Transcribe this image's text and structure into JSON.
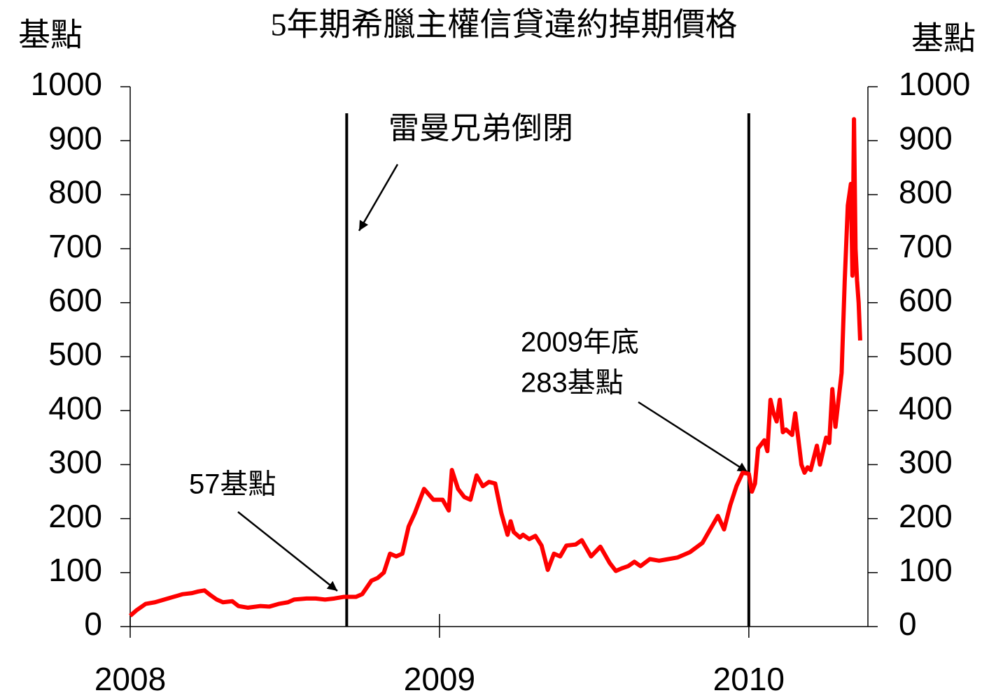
{
  "chart_data": {
    "type": "line",
    "title": "5年期希臘主權信貸違約掉期價格",
    "y_axis_label": "基點",
    "y2_axis_label": "基點",
    "annotations": [
      "雷曼兄弟倒閉",
      "2009年底",
      "283基點",
      "57基點"
    ],
    "x": [
      2008.0,
      2008.02,
      2008.05,
      2008.08,
      2008.11,
      2008.14,
      2008.17,
      2008.2,
      2008.22,
      2008.24,
      2008.26,
      2008.28,
      2008.3,
      2008.33,
      2008.35,
      2008.38,
      2008.42,
      2008.45,
      2008.48,
      2008.51,
      2008.53,
      2008.57,
      2008.6,
      2008.63,
      2008.66,
      2008.69,
      2008.73,
      2008.75,
      2008.78,
      2008.8,
      2008.82,
      2008.84,
      2008.86,
      2008.88,
      2008.9,
      2008.92,
      2008.95,
      2008.98,
      2009.01,
      2009.03,
      2009.04,
      2009.06,
      2009.08,
      2009.1,
      2009.12,
      2009.14,
      2009.16,
      2009.18,
      2009.2,
      2009.22,
      2009.23,
      2009.24,
      2009.26,
      2009.27,
      2009.29,
      2009.31,
      2009.33,
      2009.35,
      2009.37,
      2009.39,
      2009.41,
      2009.44,
      2009.46,
      2009.49,
      2009.52,
      2009.55,
      2009.57,
      2009.59,
      2009.61,
      2009.63,
      2009.65,
      2009.68,
      2009.71,
      2009.74,
      2009.77,
      2009.81,
      2009.85,
      2009.87,
      2009.9,
      2009.92,
      2009.94,
      2009.96,
      2009.98,
      2010.0,
      2010.01,
      2010.02,
      2010.03,
      2010.05,
      2010.06,
      2010.07,
      2010.08,
      2010.09,
      2010.1,
      2010.11,
      2010.12,
      2010.14,
      2010.15,
      2010.17,
      2010.18,
      2010.19,
      2010.2,
      2010.22,
      2010.23,
      2010.25,
      2010.26,
      2010.27,
      2010.28,
      2010.29,
      2010.3,
      2010.31,
      2010.32,
      2010.33,
      2010.335,
      2010.34,
      2010.345,
      2010.35,
      2010.355,
      2010.36
    ],
    "series": [
      {
        "name": "5年期希臘主權信貸違約掉期價格",
        "color": "#ff0000",
        "values": [
          20,
          30,
          42,
          45,
          50,
          55,
          60,
          62,
          65,
          67,
          58,
          50,
          45,
          47,
          38,
          35,
          38,
          37,
          42,
          45,
          50,
          52,
          52,
          50,
          52,
          55,
          55,
          60,
          85,
          90,
          100,
          135,
          130,
          135,
          185,
          210,
          255,
          235,
          235,
          215,
          290,
          255,
          240,
          235,
          280,
          260,
          268,
          265,
          210,
          170,
          195,
          175,
          165,
          170,
          162,
          168,
          150,
          105,
          135,
          130,
          150,
          152,
          160,
          130,
          148,
          118,
          103,
          108,
          112,
          120,
          112,
          125,
          122,
          125,
          128,
          138,
          155,
          175,
          205,
          180,
          225,
          260,
          285,
          283,
          250,
          265,
          330,
          345,
          325,
          420,
          395,
          380,
          420,
          360,
          365,
          355,
          395,
          300,
          285,
          295,
          290,
          335,
          300,
          350,
          340,
          440,
          370,
          420,
          470,
          640,
          780,
          820,
          650,
          940,
          700,
          640,
          600,
          530
        ]
      }
    ],
    "xlim": [
      2008.0,
      2010.385
    ],
    "xticks": [
      2008,
      2009,
      2010
    ],
    "vlines": [
      2008.7,
      2010.0
    ],
    "ylim": [
      0,
      1000
    ],
    "yticks": [
      0,
      100,
      200,
      300,
      400,
      500,
      600,
      700,
      800,
      900,
      1000
    ],
    "y2lim": [
      0,
      1000
    ],
    "y2ticks": [
      0,
      100,
      200,
      300,
      400,
      500,
      600,
      700,
      800,
      900,
      1000
    ],
    "grid": false
  }
}
